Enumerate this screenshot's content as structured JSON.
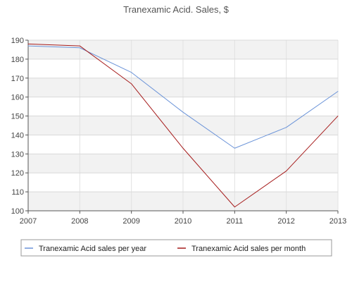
{
  "chart_data": {
    "type": "line",
    "title": "Tranexamic Acid. Sales, $",
    "xlabel": "",
    "ylabel": "",
    "x": [
      2007,
      2008,
      2009,
      2010,
      2011,
      2012,
      2013
    ],
    "xlim": [
      2007,
      2013
    ],
    "ylim": [
      100,
      190
    ],
    "y_ticks": [
      100,
      110,
      120,
      130,
      140,
      150,
      160,
      170,
      180,
      190
    ],
    "grid": true,
    "legend_placement": "bottom",
    "series": [
      {
        "name": "Tranexamic Acid sales per year",
        "color": "#6a93d8",
        "values": [
          187,
          186,
          173,
          152,
          133,
          144,
          163
        ]
      },
      {
        "name": "Tranexamic Acid sales per month",
        "color": "#a61c1c",
        "values": [
          188,
          187,
          167,
          133,
          102,
          121,
          150
        ]
      }
    ]
  }
}
